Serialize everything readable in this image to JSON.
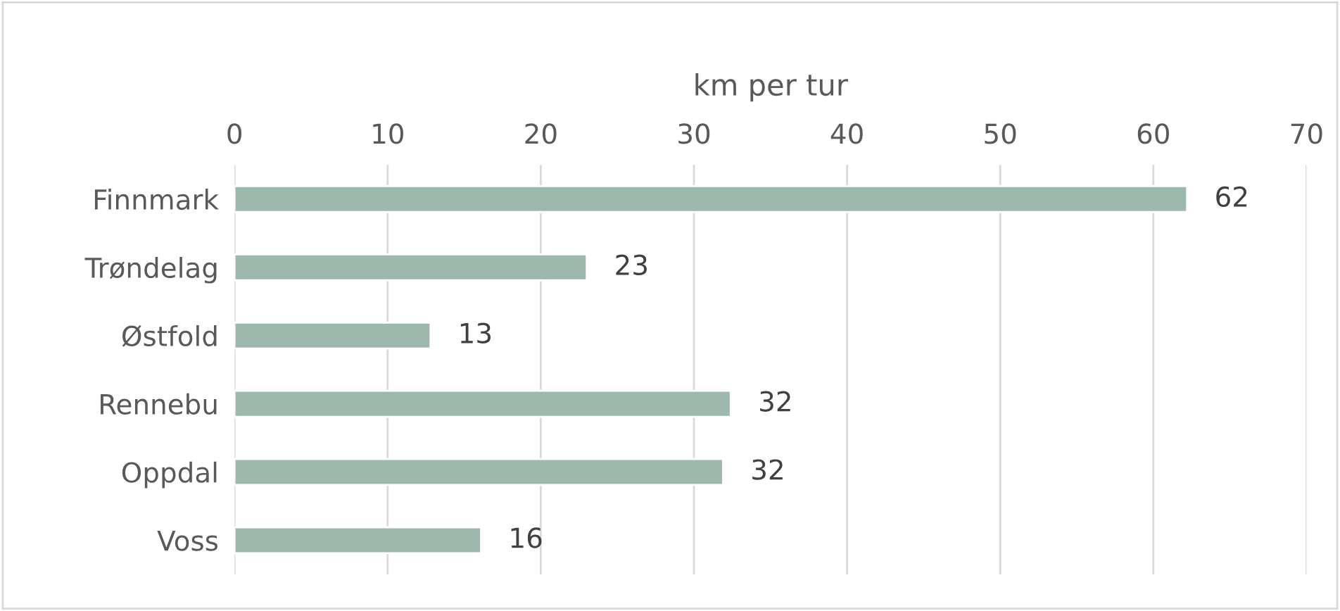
{
  "chart_data": {
    "type": "bar",
    "orientation": "horizontal",
    "xlabel": "km per tur",
    "categories": [
      "Finnmark",
      "Trøndelag",
      "Østfold",
      "Rennebu",
      "Oppdal",
      "Voss"
    ],
    "values": [
      62.2,
      23,
      12.8,
      32.4,
      31.9,
      16.1
    ],
    "value_labels": [
      "62",
      "23",
      "13",
      "32",
      "32",
      "16"
    ],
    "color": "#9db8ad",
    "xlim": [
      0,
      70
    ],
    "xticks": [
      0,
      10,
      20,
      30,
      40,
      50,
      60,
      70
    ],
    "grid": "x",
    "legend": false
  }
}
